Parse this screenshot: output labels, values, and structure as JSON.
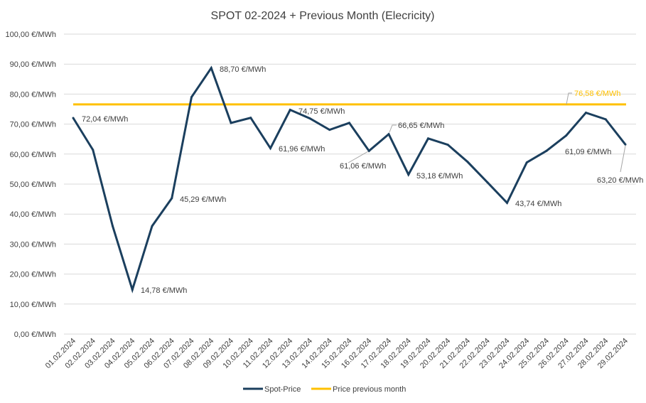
{
  "chart_data": {
    "type": "line",
    "title": "SPOT 02-2024 + Previous Month (Elecricity)",
    "xlabel": "",
    "ylabel": "",
    "ylim": [
      0,
      100
    ],
    "y_step": 10,
    "y_tick_labels": [
      "0,00 €/MWh",
      "10,00 €/MWh",
      "20,00 €/MWh",
      "30,00 €/MWh",
      "40,00 €/MWh",
      "50,00 €/MWh",
      "60,00 €/MWh",
      "70,00 €/MWh",
      "80,00 €/MWh",
      "90,00 €/MWh",
      "100,00 €/MWh"
    ],
    "grid": true,
    "legend_position": "bottom",
    "categories": [
      "01.02.2024",
      "02.02.2024",
      "03.02.2024",
      "04.02.2024",
      "05.02.2024",
      "06.02.2024",
      "07.02.2024",
      "08.02.2024",
      "09.02.2024",
      "10.02.2024",
      "11.02.2024",
      "12.02.2024",
      "13.02.2024",
      "14.02.2024",
      "15.02.2024",
      "16.02.2024",
      "17.02.2024",
      "18.02.2024",
      "19.02.2024",
      "20.02.2024",
      "21.02.2024",
      "22.02.2024",
      "23.02.2024",
      "24.02.2024",
      "25.02.2024",
      "26.02.2024",
      "27.02.2024",
      "28.02.2024",
      "29.02.2024"
    ],
    "series": [
      {
        "name": "Spot-Price",
        "color": "#1B3F5E",
        "values": [
          72.04,
          61.4,
          36.0,
          14.78,
          36.0,
          45.29,
          79.0,
          88.7,
          70.4,
          72.1,
          61.96,
          74.75,
          71.9,
          68.1,
          70.4,
          61.06,
          66.65,
          53.18,
          65.2,
          63.1,
          57.4,
          50.6,
          43.74,
          57.2,
          61.09,
          66.2,
          73.8,
          71.6,
          63.2
        ],
        "labels": [
          {
            "index": 0,
            "text": "72,04 €/MWh"
          },
          {
            "index": 3,
            "text": "14,78 €/MWh"
          },
          {
            "index": 5,
            "text": "45,29 €/MWh"
          },
          {
            "index": 7,
            "text": "88,70 €/MWh"
          },
          {
            "index": 10,
            "text": "61,96 €/MWh"
          },
          {
            "index": 11,
            "text": "74,75 €/MWh"
          },
          {
            "index": 15,
            "text": "61,06 €/MWh"
          },
          {
            "index": 16,
            "text": "66,65 €/MWh"
          },
          {
            "index": 17,
            "text": "53,18 €/MWh"
          },
          {
            "index": 22,
            "text": "43,74 €/MWh"
          },
          {
            "index": 24,
            "text": "61,09 €/MWh"
          },
          {
            "index": 28,
            "text": "63,20 €/MWh"
          }
        ]
      },
      {
        "name": "Price previous month",
        "color": "#FFC000",
        "value": 76.58,
        "label": "76,58 €/MWh"
      }
    ]
  }
}
